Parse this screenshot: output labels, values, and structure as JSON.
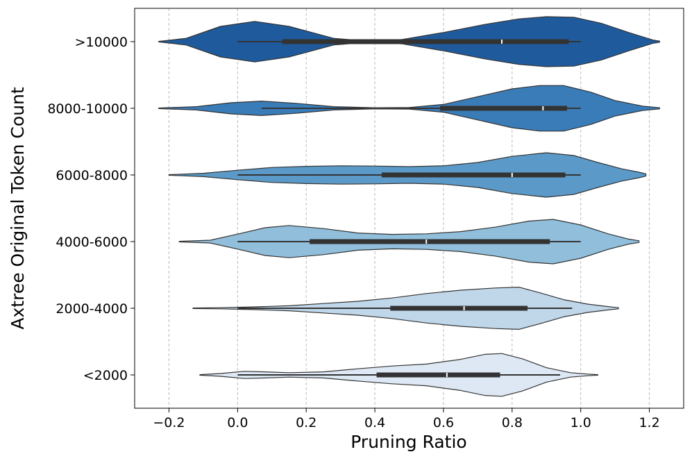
{
  "chart_data": {
    "type": "violin",
    "orientation": "horizontal",
    "xlabel": "Pruning Ratio",
    "ylabel": "Axtree Original Token Count",
    "xlim": [
      -0.3,
      1.3
    ],
    "xticks": [
      -0.2,
      0.0,
      0.2,
      0.4,
      0.6,
      0.8,
      1.0,
      1.2
    ],
    "xtick_labels": [
      "−0.2",
      "0.0",
      "0.2",
      "0.4",
      "0.6",
      "0.8",
      "1.0",
      "1.2"
    ],
    "grid": "x-dashed",
    "categories": [
      ">10000",
      "8000-10000",
      "6000-8000",
      "4000-6000",
      "2000-4000",
      "<2000"
    ],
    "colors": [
      "#1f5b9c",
      "#3a7cb8",
      "#5b9ac8",
      "#91bfdb",
      "#c0d7ea",
      "#dde8f4"
    ],
    "series": [
      {
        "name": ">10000",
        "whisker": [
          0.0,
          1.0
        ],
        "q1": 0.13,
        "median": 0.77,
        "q3": 0.965,
        "density": [
          [
            -0.23,
            0.01
          ],
          [
            -0.15,
            0.12
          ],
          [
            -0.05,
            0.55
          ],
          [
            0.05,
            0.73
          ],
          [
            0.15,
            0.55
          ],
          [
            0.28,
            0.12
          ],
          [
            0.38,
            0.02
          ],
          [
            0.48,
            0.08
          ],
          [
            0.6,
            0.33
          ],
          [
            0.72,
            0.62
          ],
          [
            0.82,
            0.82
          ],
          [
            0.9,
            0.9
          ],
          [
            0.98,
            0.88
          ],
          [
            1.06,
            0.66
          ],
          [
            1.14,
            0.33
          ],
          [
            1.21,
            0.06
          ],
          [
            1.23,
            0.02
          ]
        ]
      },
      {
        "name": "8000-10000",
        "whisker": [
          0.07,
          1.0
        ],
        "q1": 0.59,
        "median": 0.89,
        "q3": 0.96,
        "density": [
          [
            -0.23,
            0.01
          ],
          [
            -0.12,
            0.06
          ],
          [
            -0.02,
            0.2
          ],
          [
            0.07,
            0.26
          ],
          [
            0.17,
            0.18
          ],
          [
            0.28,
            0.06
          ],
          [
            0.4,
            0.02
          ],
          [
            0.5,
            0.03
          ],
          [
            0.6,
            0.14
          ],
          [
            0.7,
            0.42
          ],
          [
            0.8,
            0.7
          ],
          [
            0.88,
            0.82
          ],
          [
            0.95,
            0.82
          ],
          [
            1.03,
            0.58
          ],
          [
            1.1,
            0.28
          ],
          [
            1.18,
            0.08
          ],
          [
            1.23,
            0.02
          ]
        ]
      },
      {
        "name": "6000-8000",
        "whisker": [
          0.0,
          1.0
        ],
        "q1": 0.42,
        "median": 0.8,
        "q3": 0.955,
        "density": [
          [
            -0.2,
            0.01
          ],
          [
            -0.1,
            0.06
          ],
          [
            0.0,
            0.17
          ],
          [
            0.1,
            0.27
          ],
          [
            0.2,
            0.31
          ],
          [
            0.3,
            0.33
          ],
          [
            0.4,
            0.32
          ],
          [
            0.5,
            0.3
          ],
          [
            0.6,
            0.33
          ],
          [
            0.7,
            0.45
          ],
          [
            0.8,
            0.67
          ],
          [
            0.9,
            0.8
          ],
          [
            0.98,
            0.7
          ],
          [
            1.05,
            0.45
          ],
          [
            1.12,
            0.22
          ],
          [
            1.17,
            0.1
          ],
          [
            1.19,
            0.04
          ]
        ]
      },
      {
        "name": "4000-6000",
        "whisker": [
          0.0,
          1.0
        ],
        "q1": 0.21,
        "median": 0.55,
        "q3": 0.91,
        "density": [
          [
            -0.17,
            0.01
          ],
          [
            -0.08,
            0.05
          ],
          [
            0.0,
            0.27
          ],
          [
            0.08,
            0.5
          ],
          [
            0.15,
            0.58
          ],
          [
            0.25,
            0.47
          ],
          [
            0.35,
            0.31
          ],
          [
            0.45,
            0.26
          ],
          [
            0.55,
            0.28
          ],
          [
            0.65,
            0.36
          ],
          [
            0.75,
            0.52
          ],
          [
            0.85,
            0.74
          ],
          [
            0.92,
            0.8
          ],
          [
            1.0,
            0.6
          ],
          [
            1.08,
            0.28
          ],
          [
            1.14,
            0.09
          ],
          [
            1.17,
            0.03
          ]
        ]
      },
      {
        "name": "2000-4000",
        "whisker": [
          0.0,
          0.975
        ],
        "q1": 0.445,
        "median": 0.66,
        "q3": 0.845,
        "density": [
          [
            -0.13,
            0.01
          ],
          [
            -0.05,
            0.02
          ],
          [
            0.05,
            0.05
          ],
          [
            0.15,
            0.09
          ],
          [
            0.25,
            0.17
          ],
          [
            0.35,
            0.25
          ],
          [
            0.45,
            0.37
          ],
          [
            0.55,
            0.53
          ],
          [
            0.65,
            0.65
          ],
          [
            0.75,
            0.73
          ],
          [
            0.82,
            0.76
          ],
          [
            0.88,
            0.56
          ],
          [
            0.95,
            0.31
          ],
          [
            1.02,
            0.15
          ],
          [
            1.08,
            0.06
          ],
          [
            1.11,
            0.02
          ]
        ]
      },
      {
        "name": "<2000",
        "whisker": [
          0.0,
          0.94
        ],
        "q1": 0.405,
        "median": 0.61,
        "q3": 0.765,
        "density": [
          [
            -0.11,
            0.01
          ],
          [
            -0.05,
            0.05
          ],
          [
            0.02,
            0.13
          ],
          [
            0.08,
            0.11
          ],
          [
            0.15,
            0.08
          ],
          [
            0.25,
            0.11
          ],
          [
            0.35,
            0.22
          ],
          [
            0.45,
            0.32
          ],
          [
            0.55,
            0.39
          ],
          [
            0.65,
            0.56
          ],
          [
            0.72,
            0.74
          ],
          [
            0.77,
            0.77
          ],
          [
            0.83,
            0.58
          ],
          [
            0.9,
            0.26
          ],
          [
            0.97,
            0.08
          ],
          [
            1.02,
            0.03
          ],
          [
            1.05,
            0.01
          ]
        ]
      }
    ]
  }
}
